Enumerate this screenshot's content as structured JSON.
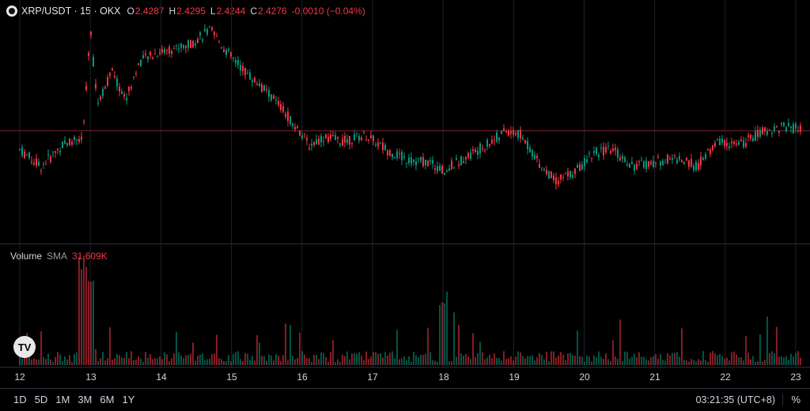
{
  "legend": {
    "symbol_title": "XRP/USDT · 15 · OKX",
    "open_label": "O",
    "open": "2.4287",
    "high_label": "H",
    "high": "2.4295",
    "low_label": "L",
    "low": "2.4244",
    "close_label": "C",
    "close": "2.4276",
    "change": "-0.0010 (−0.04%)",
    "icon": "xrp-coin-icon"
  },
  "volume_legend": {
    "label": "Volume",
    "sma_label": "SMA",
    "sma_value": "31.609K"
  },
  "x_axis_labels": [
    "12",
    "13",
    "14",
    "15",
    "16",
    "17",
    "18",
    "19",
    "20",
    "21",
    "22",
    "23"
  ],
  "range_buttons": [
    "1D",
    "5D",
    "1M",
    "3M",
    "6M",
    "1Y"
  ],
  "clock": "03:21:35 (UTC+8)",
  "percent_toggle": "%",
  "colors": {
    "up": "#089981",
    "down": "#f23645",
    "background": "#000000",
    "grid": "#1e222d"
  },
  "chart_data": {
    "type": "candlestick",
    "x_ticks": [
      "12",
      "13",
      "14",
      "15",
      "16",
      "17",
      "18",
      "19",
      "20",
      "21",
      "22",
      "23"
    ],
    "price_path_relative": [
      [
        12.0,
        0.38
      ],
      [
        12.3,
        0.3
      ],
      [
        12.6,
        0.4
      ],
      [
        12.9,
        0.45
      ],
      [
        13.0,
        0.95
      ],
      [
        13.1,
        0.6
      ],
      [
        13.3,
        0.75
      ],
      [
        13.5,
        0.62
      ],
      [
        13.7,
        0.8
      ],
      [
        14.0,
        0.85
      ],
      [
        14.4,
        0.88
      ],
      [
        14.7,
        0.95
      ],
      [
        15.0,
        0.82
      ],
      [
        15.3,
        0.72
      ],
      [
        15.6,
        0.62
      ],
      [
        15.9,
        0.5
      ],
      [
        16.1,
        0.4
      ],
      [
        16.3,
        0.44
      ],
      [
        16.6,
        0.42
      ],
      [
        16.9,
        0.45
      ],
      [
        17.2,
        0.38
      ],
      [
        17.5,
        0.33
      ],
      [
        17.8,
        0.32
      ],
      [
        18.0,
        0.28
      ],
      [
        18.3,
        0.34
      ],
      [
        18.6,
        0.4
      ],
      [
        18.9,
        0.47
      ],
      [
        19.1,
        0.45
      ],
      [
        19.4,
        0.3
      ],
      [
        19.6,
        0.23
      ],
      [
        19.9,
        0.28
      ],
      [
        20.1,
        0.36
      ],
      [
        20.4,
        0.38
      ],
      [
        20.7,
        0.3
      ],
      [
        21.0,
        0.32
      ],
      [
        21.3,
        0.34
      ],
      [
        21.6,
        0.3
      ],
      [
        21.9,
        0.42
      ],
      [
        22.2,
        0.4
      ],
      [
        22.5,
        0.46
      ],
      [
        22.8,
        0.49
      ],
      [
        23.0,
        0.48
      ]
    ],
    "volume_spikes_at": [
      "12.9",
      "13.0",
      "18.0"
    ],
    "last_price_line_relative": 0.47
  }
}
